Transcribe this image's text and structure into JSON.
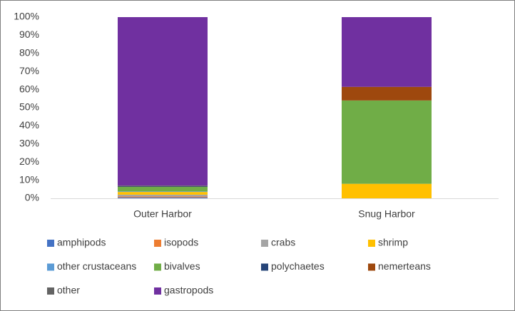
{
  "chart_data": {
    "type": "stacked_bar_percent",
    "categories": [
      "Outer Harbor",
      "Snug Harbor"
    ],
    "series": [
      {
        "name": "amphipods",
        "color": "#4472c4",
        "values": [
          0.5,
          0
        ]
      },
      {
        "name": "isopods",
        "color": "#ed7d31",
        "values": [
          0.5,
          0
        ]
      },
      {
        "name": "crabs",
        "color": "#a5a5a5",
        "values": [
          1,
          0
        ]
      },
      {
        "name": "shrimp",
        "color": "#ffc000",
        "values": [
          1.5,
          8
        ]
      },
      {
        "name": "other crustaceans",
        "color": "#5b9bd5",
        "values": [
          0.3,
          0
        ]
      },
      {
        "name": "bivalves",
        "color": "#70ad47",
        "values": [
          2.5,
          46
        ]
      },
      {
        "name": "polychaetes",
        "color": "#264478",
        "values": [
          0.2,
          0
        ]
      },
      {
        "name": "nemerteans",
        "color": "#9e480e",
        "values": [
          0,
          7.5
        ]
      },
      {
        "name": "other",
        "color": "#636363",
        "values": [
          0.5,
          0
        ]
      },
      {
        "name": "gastropods",
        "color": "#7030a0",
        "values": [
          93,
          38.5
        ]
      }
    ],
    "ylim": [
      0,
      100
    ],
    "yticks": [
      {
        "value": 0,
        "label": "0%"
      },
      {
        "value": 10,
        "label": "10%"
      },
      {
        "value": 20,
        "label": "20%"
      },
      {
        "value": 30,
        "label": "30%"
      },
      {
        "value": 40,
        "label": "40%"
      },
      {
        "value": 50,
        "label": "50%"
      },
      {
        "value": 60,
        "label": "60%"
      },
      {
        "value": 70,
        "label": "70%"
      },
      {
        "value": 80,
        "label": "80%"
      },
      {
        "value": 90,
        "label": "90%"
      },
      {
        "value": 100,
        "label": "100%"
      }
    ]
  }
}
